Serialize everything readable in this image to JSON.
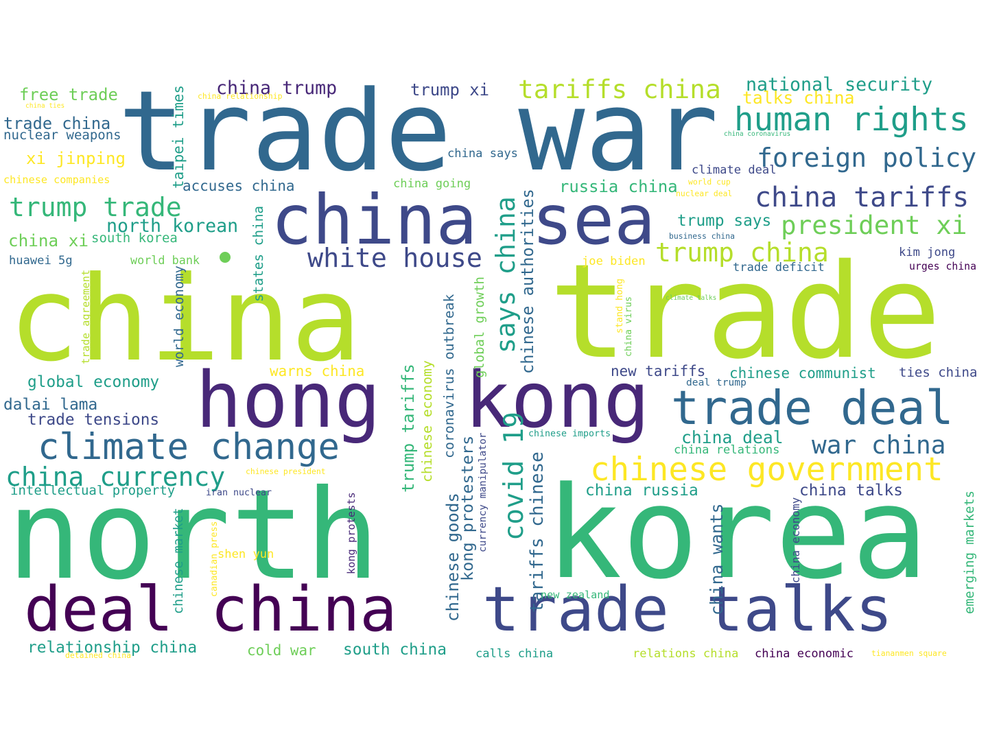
{
  "words": [
    "trade war",
    "china",
    "trade",
    "north",
    "korea",
    "china",
    "sea",
    "hong",
    "kong",
    "deal china",
    "trade talks",
    "trade deal",
    "climate change",
    "chinese government",
    "white house",
    "human rights",
    "foreign policy",
    "tariffs china",
    "china tariffs",
    "president xi",
    "trump china",
    "china currency",
    "trump trade",
    "china trump",
    "trump xi",
    "national security",
    "talks china",
    "free trade",
    "trade china",
    "nuclear weapons",
    "xi jinping",
    "chinese companies",
    "taipei times",
    "accuses china",
    "china going",
    "china says",
    "north korean",
    "russia china",
    "trump says",
    "climate deal",
    "world cup",
    "nuclear deal",
    "china xi",
    "south korea",
    "business china",
    "huawei 5g",
    "world bank",
    "says china",
    "chinese authorities",
    "joe biden",
    "kim jong",
    "trade deficit",
    "urges china",
    "states china",
    "world economy",
    "trade agreement",
    "global growth",
    "coronavirus outbreak",
    "climate talks",
    "stand hong",
    "china virus",
    "global economy",
    "warns china",
    "new tariffs",
    "chinese communist",
    "ties china",
    "deal trump",
    "dalai lama",
    "trade tensions",
    "trump tariffs",
    "chinese economy",
    "chinese imports",
    "china deal",
    "war china",
    "china relations",
    "covid 19",
    "kong protesters",
    "currency manipulator",
    "chinese goods",
    "chinese president",
    "intellectual property",
    "iran nuclear",
    "china russia",
    "china talks",
    "china wants",
    "tariffs chinese",
    "kong protests",
    "emerging markets",
    "china economy",
    "chinese market",
    "canadian press",
    "shen yun",
    "new zealand",
    "relationship china",
    "cold war",
    "south china",
    "calls china",
    "detained china",
    "relations china",
    "china economic",
    "tiananmen square",
    "china ties",
    "china relationship",
    "china coronavirus"
  ],
  "colors": {
    "accent": "#b5de2b",
    "bright_green": "#6ece58",
    "yellow": "#fde725",
    "green": "#35b779",
    "teal": "#1f9e89",
    "blue": "#31688e",
    "dark_blue": "#3e4989",
    "purple": "#482878",
    "dark_purple": "#440154"
  }
}
